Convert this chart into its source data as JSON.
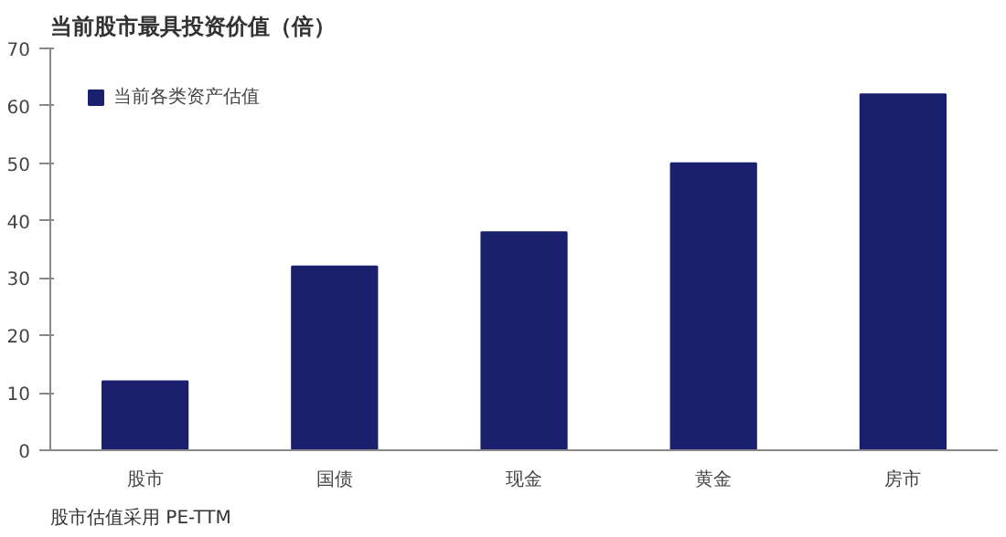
{
  "chart_data": {
    "type": "bar",
    "title": "当前股市最具投资价值（倍）",
    "categories": [
      "股市",
      "国债",
      "现金",
      "黄金",
      "房市"
    ],
    "series": [
      {
        "name": "当前各类资产估值",
        "color": "#1a1f6e",
        "values": [
          12,
          32,
          38,
          50,
          62
        ]
      }
    ],
    "ylim": [
      0,
      70
    ],
    "yticks": [
      0,
      10,
      20,
      30,
      40,
      50,
      60,
      70
    ],
    "grid": false,
    "legend": "top left",
    "annotations": [
      "股市估值采用 PE-TTM"
    ]
  }
}
